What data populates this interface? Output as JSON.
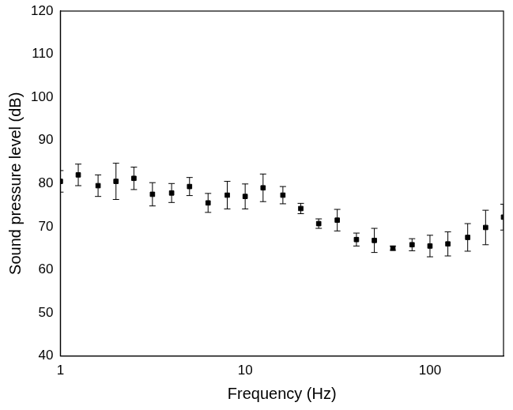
{
  "chart_data": {
    "type": "scatter",
    "x_label": "Frequency (Hz)",
    "y_label": "Sound pressure level (dB)",
    "x": [
      1,
      1.25,
      1.6,
      2,
      2.5,
      3.15,
      4,
      5,
      6.3,
      8,
      10,
      12.5,
      16,
      20,
      25,
      31.5,
      40,
      50,
      63,
      80,
      100,
      125,
      160,
      200,
      250
    ],
    "values": [
      80.5,
      82,
      79.5,
      80.5,
      81.2,
      77.5,
      77.8,
      79.3,
      75.5,
      77.3,
      77,
      79,
      77.3,
      74.2,
      70.7,
      71.5,
      67,
      66.8,
      65,
      65.8,
      65.5,
      66,
      67.5,
      69.8,
      72.2
    ],
    "errors": [
      2.5,
      2.5,
      2.5,
      4.2,
      2.6,
      2.7,
      2.2,
      2.1,
      2.2,
      3.2,
      2.9,
      3.2,
      2,
      1.2,
      1.1,
      2.5,
      1.5,
      2.8,
      0.5,
      1.4,
      2.5,
      2.8,
      3.2,
      4,
      3
    ],
    "xlim": [
      1,
      250
    ],
    "ylim": [
      40,
      120
    ],
    "xticks": [
      1,
      10,
      100
    ],
    "yticks": [
      40,
      50,
      60,
      70,
      80,
      90,
      100,
      110,
      120
    ],
    "log": "x",
    "grid": false,
    "color": "#000000",
    "marker": "square"
  }
}
